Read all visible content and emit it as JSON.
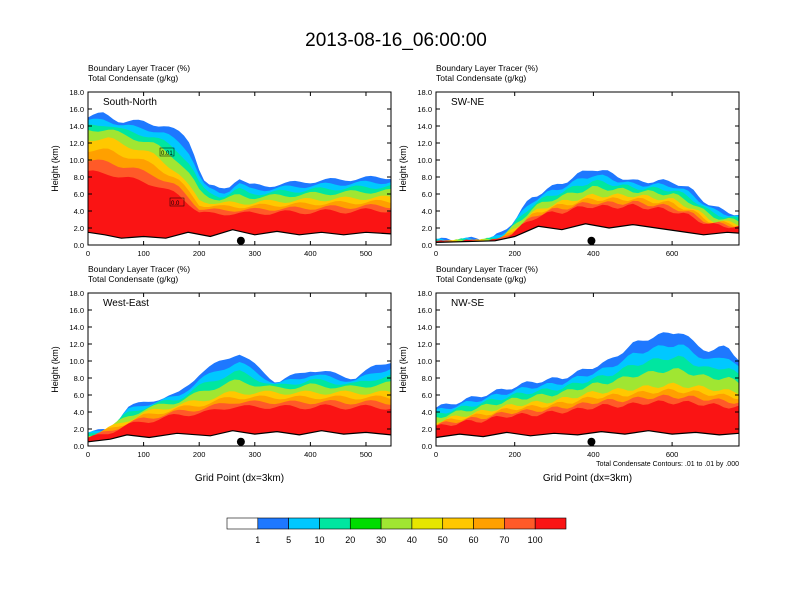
{
  "title": "2013-08-16_06:00:00",
  "colors": {
    "palette": [
      "#ffffff",
      "#1e78ff",
      "#00c8ff",
      "#00e6a0",
      "#00dc00",
      "#a0e632",
      "#e6e600",
      "#ffc800",
      "#ffa000",
      "#ff5a28",
      "#fa1414"
    ]
  },
  "chart_data": [
    {
      "type": "heatmap",
      "name": "South-North",
      "title_lines": [
        "Boundary Layer Tracer   (%)",
        "Total Condensate   (g/kg)"
      ],
      "label": "South-North",
      "ylabel": "Height (km)",
      "xlabel": "",
      "xlim": [
        0,
        545
      ],
      "ylim": [
        0,
        18
      ],
      "xticks": [
        "0",
        "100",
        "200",
        "300",
        "400",
        "500"
      ],
      "xtick_values": [
        0,
        100,
        200,
        300,
        400,
        500
      ],
      "yticks": [
        "0.0",
        "2.0",
        "4.0",
        "6.0",
        "8.0",
        "10.0",
        "12.0",
        "14.0",
        "16.0",
        "18.0"
      ],
      "marker_x": 275,
      "note": "",
      "cloud_top": [
        [
          0,
          15
        ],
        [
          30,
          15.5
        ],
        [
          60,
          14.5
        ],
        [
          100,
          14.5
        ],
        [
          140,
          14
        ],
        [
          170,
          13
        ],
        [
          185,
          12
        ],
        [
          195,
          10
        ],
        [
          205,
          8
        ],
        [
          215,
          7
        ],
        [
          240,
          6.5
        ],
        [
          255,
          7
        ],
        [
          270,
          8
        ],
        [
          290,
          7
        ],
        [
          320,
          7
        ],
        [
          400,
          7.5
        ],
        [
          480,
          7.8
        ],
        [
          545,
          8
        ]
      ],
      "bl_top": [
        [
          0,
          13
        ],
        [
          40,
          13
        ],
        [
          80,
          12
        ],
        [
          120,
          11
        ],
        [
          160,
          9
        ],
        [
          200,
          5.5
        ],
        [
          240,
          5
        ],
        [
          300,
          5.2
        ],
        [
          400,
          5.5
        ],
        [
          480,
          5.7
        ],
        [
          545,
          5.8
        ]
      ],
      "terrain": [
        [
          0,
          1.5
        ],
        [
          30,
          1.2
        ],
        [
          60,
          0.8
        ],
        [
          100,
          1
        ],
        [
          140,
          0.8
        ],
        [
          180,
          1.5
        ],
        [
          220,
          1
        ],
        [
          260,
          1.8
        ],
        [
          300,
          1.2
        ],
        [
          340,
          1.6
        ],
        [
          380,
          1.2
        ],
        [
          420,
          1.5
        ],
        [
          460,
          1.2
        ],
        [
          500,
          1.5
        ],
        [
          545,
          1.3
        ]
      ],
      "labels": [
        "0.01",
        "0.0"
      ]
    },
    {
      "type": "heatmap",
      "name": "SW-NE",
      "title_lines": [
        "Boundary Layer Tracer   (%)",
        "Total Condensate   (g/kg)"
      ],
      "label": "SW-NE",
      "ylabel": "Height (km)",
      "xlabel": "",
      "xlim": [
        0,
        770
      ],
      "ylim": [
        0,
        18
      ],
      "xticks": [
        "0",
        "200",
        "400",
        "600"
      ],
      "xtick_values": [
        0,
        200,
        400,
        600
      ],
      "yticks": [
        "0.0",
        "2.0",
        "4.0",
        "6.0",
        "8.0",
        "10.0",
        "12.0",
        "14.0",
        "16.0",
        "18.0"
      ],
      "marker_x": 395,
      "note": "",
      "cloud_top": [
        [
          0,
          0.6
        ],
        [
          140,
          0.8
        ],
        [
          170,
          1.5
        ],
        [
          200,
          3
        ],
        [
          240,
          5.5
        ],
        [
          280,
          6.5
        ],
        [
          330,
          7.5
        ],
        [
          370,
          8.5
        ],
        [
          400,
          9
        ],
        [
          440,
          8.5
        ],
        [
          500,
          7.5
        ],
        [
          600,
          7.5
        ],
        [
          650,
          6.5
        ],
        [
          700,
          4.5
        ],
        [
          740,
          4
        ],
        [
          770,
          3.5
        ]
      ],
      "bl_top": [
        [
          0,
          0.3
        ],
        [
          160,
          0.5
        ],
        [
          200,
          2
        ],
        [
          250,
          4
        ],
        [
          300,
          5
        ],
        [
          400,
          6
        ],
        [
          500,
          6
        ],
        [
          600,
          5.5
        ],
        [
          650,
          4.5
        ],
        [
          700,
          3
        ],
        [
          770,
          2.5
        ]
      ],
      "terrain": [
        [
          0,
          0.3
        ],
        [
          150,
          0.5
        ],
        [
          200,
          1
        ],
        [
          260,
          2.2
        ],
        [
          320,
          1.8
        ],
        [
          380,
          2.5
        ],
        [
          440,
          2
        ],
        [
          500,
          2.4
        ],
        [
          560,
          2
        ],
        [
          620,
          1.6
        ],
        [
          680,
          1.2
        ],
        [
          740,
          1.5
        ],
        [
          770,
          1.4
        ]
      ],
      "labels": []
    },
    {
      "type": "heatmap",
      "name": "West-East",
      "title_lines": [
        "Boundary Layer Tracer   (%)",
        "Total Condensate   (g/kg)"
      ],
      "label": "West-East",
      "ylabel": "Height (km)",
      "xlabel": "Grid Point (dx=3km)",
      "xlim": [
        0,
        545
      ],
      "ylim": [
        0,
        18
      ],
      "xticks": [
        "0",
        "100",
        "200",
        "300",
        "400",
        "500"
      ],
      "xtick_values": [
        0,
        100,
        200,
        300,
        400,
        500
      ],
      "yticks": [
        "0.0",
        "2.0",
        "4.0",
        "6.0",
        "8.0",
        "10.0",
        "12.0",
        "14.0",
        "16.0",
        "18.0"
      ],
      "marker_x": 275,
      "note": "",
      "cloud_top": [
        [
          0,
          1.5
        ],
        [
          40,
          2
        ],
        [
          70,
          4.5
        ],
        [
          120,
          5.5
        ],
        [
          160,
          6
        ],
        [
          200,
          8.5
        ],
        [
          240,
          10
        ],
        [
          270,
          11
        ],
        [
          300,
          9.5
        ],
        [
          340,
          7.5
        ],
        [
          400,
          9
        ],
        [
          440,
          8.5
        ],
        [
          480,
          8
        ],
        [
          520,
          9.5
        ],
        [
          545,
          10
        ]
      ],
      "bl_top": [
        [
          0,
          1
        ],
        [
          50,
          2.5
        ],
        [
          100,
          4
        ],
        [
          150,
          4.8
        ],
        [
          200,
          5.5
        ],
        [
          260,
          6.5
        ],
        [
          300,
          6.5
        ],
        [
          400,
          6.5
        ],
        [
          480,
          6.5
        ],
        [
          545,
          6.5
        ]
      ],
      "terrain": [
        [
          0,
          0.5
        ],
        [
          40,
          0.8
        ],
        [
          70,
          1.3
        ],
        [
          110,
          1
        ],
        [
          160,
          1.5
        ],
        [
          220,
          1.2
        ],
        [
          260,
          1.8
        ],
        [
          300,
          1.4
        ],
        [
          340,
          1.7
        ],
        [
          380,
          1.3
        ],
        [
          420,
          1.8
        ],
        [
          460,
          1.4
        ],
        [
          500,
          1.6
        ],
        [
          545,
          1.3
        ]
      ],
      "labels": []
    },
    {
      "type": "heatmap",
      "name": "NW-SE",
      "title_lines": [
        "Boundary Layer Tracer   (%)",
        "Total Condensate   (g/kg)"
      ],
      "label": "NW-SE",
      "ylabel": "Height (km)",
      "xlabel": "Grid Point (dx=3km)",
      "xlim": [
        0,
        770
      ],
      "ylim": [
        0,
        18
      ],
      "xticks": [
        "0",
        "200",
        "400",
        "600"
      ],
      "xtick_values": [
        0,
        200,
        400,
        600
      ],
      "yticks": [
        "0.0",
        "2.0",
        "4.0",
        "6.0",
        "8.0",
        "10.0",
        "12.0",
        "14.0",
        "16.0",
        "18.0"
      ],
      "marker_x": 395,
      "note": "Total Condensate Contours: .01 to .01 by .000",
      "cloud_top": [
        [
          0,
          4.5
        ],
        [
          80,
          5.5
        ],
        [
          160,
          6.5
        ],
        [
          240,
          7.5
        ],
        [
          320,
          8
        ],
        [
          380,
          9
        ],
        [
          440,
          10
        ],
        [
          500,
          12
        ],
        [
          560,
          13
        ],
        [
          620,
          13.5
        ],
        [
          660,
          12
        ],
        [
          700,
          11
        ],
        [
          740,
          12
        ],
        [
          770,
          10
        ]
      ],
      "bl_top": [
        [
          0,
          3
        ],
        [
          100,
          4
        ],
        [
          200,
          5
        ],
        [
          300,
          5.5
        ],
        [
          400,
          6.5
        ],
        [
          500,
          7
        ],
        [
          600,
          7.5
        ],
        [
          700,
          7
        ],
        [
          770,
          6.5
        ]
      ],
      "terrain": [
        [
          0,
          1
        ],
        [
          60,
          1.4
        ],
        [
          120,
          1.1
        ],
        [
          180,
          1.6
        ],
        [
          240,
          1.2
        ],
        [
          300,
          1.5
        ],
        [
          360,
          1.3
        ],
        [
          420,
          1.7
        ],
        [
          480,
          1.4
        ],
        [
          540,
          1.8
        ],
        [
          600,
          1.4
        ],
        [
          660,
          1.6
        ],
        [
          720,
          1.3
        ],
        [
          770,
          1.5
        ]
      ],
      "labels": []
    }
  ],
  "colorbar": {
    "labels": [
      "1",
      "5",
      "10",
      "20",
      "30",
      "40",
      "50",
      "60",
      "70",
      "100"
    ],
    "colors": [
      "#ffffff",
      "#1e78ff",
      "#00c8ff",
      "#00e6a0",
      "#00dc00",
      "#a0e632",
      "#e6e600",
      "#ffc800",
      "#ffa000",
      "#ff5a28",
      "#fa1414"
    ]
  }
}
